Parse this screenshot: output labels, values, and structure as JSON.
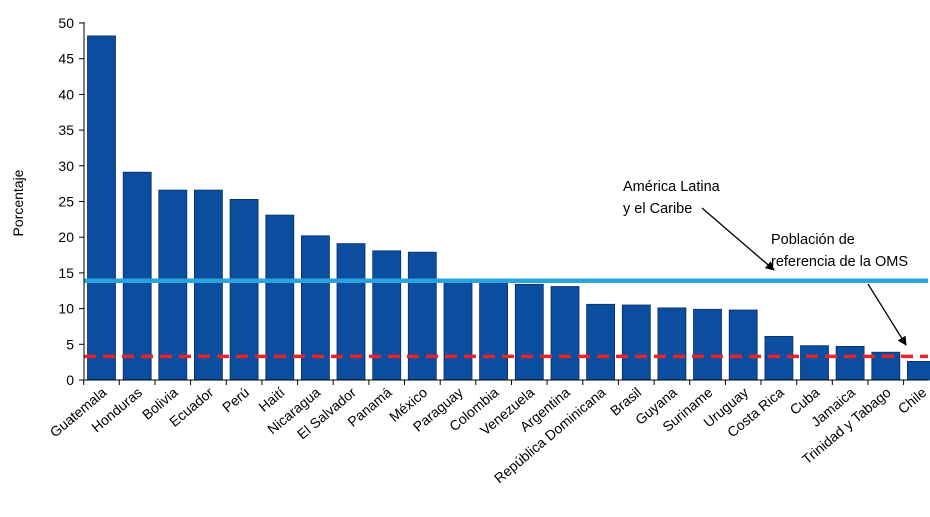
{
  "chart_data": {
    "type": "bar",
    "title": "",
    "xlabel": "",
    "ylabel": "Porcentaje",
    "ylim": [
      0,
      50
    ],
    "yticks": [
      0,
      5,
      10,
      15,
      20,
      25,
      30,
      35,
      40,
      45,
      50
    ],
    "grid": false,
    "categories": [
      "Guatemala",
      "Honduras",
      "Bolivia",
      "Ecuador",
      "Perú",
      "Haití",
      "Nicaragua",
      "El Salvador",
      "Panamá",
      "México",
      "Paraguay",
      "Colombia",
      "Venezuela",
      "Argentina",
      "República Dominicana",
      "Brasil",
      "Guyana",
      "Suriname",
      "Uruguay",
      "Costa Rica",
      "Cuba",
      "Jamaica",
      "Trinidad y Tabago",
      "Chile"
    ],
    "values": [
      48.2,
      29.1,
      26.6,
      26.6,
      25.3,
      23.1,
      20.2,
      19.1,
      18.1,
      17.9,
      14.1,
      13.9,
      13.4,
      13.1,
      10.6,
      10.5,
      10.1,
      9.9,
      9.8,
      6.1,
      4.8,
      4.7,
      3.9,
      2.6
    ],
    "bar_color": "#0b4d9e",
    "reference_lines": [
      {
        "name_lines": [
          "América Latina",
          "y el Caribe"
        ],
        "value": 13.9,
        "color": "#2aa4dc",
        "style": "solid"
      },
      {
        "name_lines": [
          "Población de",
          "referencia de la OMS"
        ],
        "value": 3.3,
        "color": "#e8242b",
        "style": "dashed"
      }
    ]
  }
}
